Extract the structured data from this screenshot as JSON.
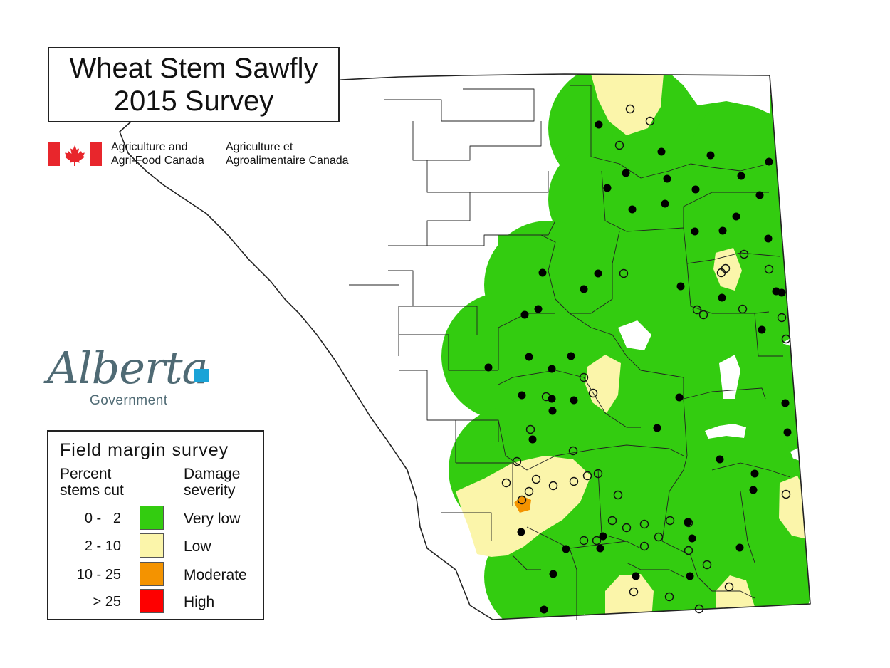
{
  "title": {
    "line1": "Wheat Stem Sawfly",
    "line2": "2015 Survey"
  },
  "agency": {
    "en_line1": "Agriculture and",
    "en_line2": "Agri-Food Canada",
    "fr_line1": "Agriculture et",
    "fr_line2": "Agroalimentaire Canada",
    "flag_icon": "canada-flag-icon",
    "flag_color": "#e8262c"
  },
  "alberta_logo": {
    "wordmark": "Alberta",
    "subtitle": "Government",
    "text_color": "#4f6a74",
    "accent_color": "#1aa3d7"
  },
  "legend": {
    "title": "Field margin survey",
    "col1_line1": "Percent",
    "col1_line2": "stems cut",
    "col2_line1": "Damage",
    "col2_line2": "severity",
    "classes": [
      {
        "range": "0 -   2",
        "label": "Very low",
        "color": "#33cc10"
      },
      {
        "range": "2 - 10",
        "label": "Low",
        "color": "#fbf5aa"
      },
      {
        "range": "10 - 25",
        "label": "Moderate",
        "color": "#f49300"
      },
      {
        "range": "> 25",
        "label": "High",
        "color": "#fe0000"
      }
    ]
  },
  "map_colors": {
    "very_low": "#33cc10",
    "low": "#fbf5aa",
    "moderate": "#f49300",
    "boundary": "#222222",
    "sample_filled": "#000000"
  }
}
